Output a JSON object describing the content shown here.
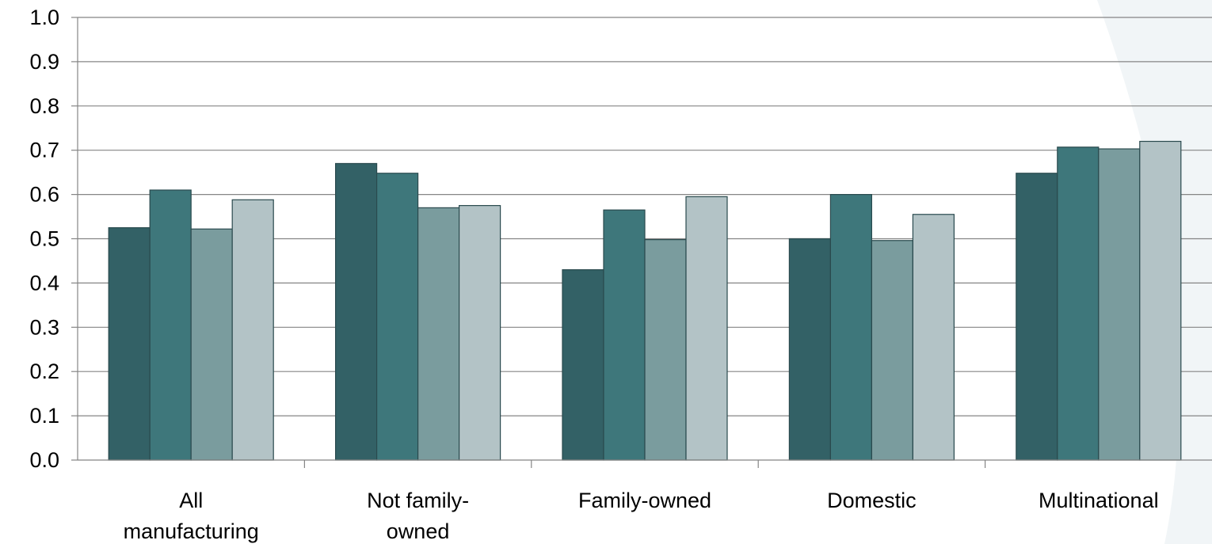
{
  "chart_data": {
    "type": "bar",
    "title": "",
    "xlabel": "",
    "ylabel": "",
    "ylim": [
      0,
      1.0
    ],
    "yticks": [
      "0.0",
      "0.1",
      "0.2",
      "0.3",
      "0.4",
      "0.5",
      "0.6",
      "0.7",
      "0.8",
      "0.9",
      "1.0"
    ],
    "grid": "horizontal",
    "legend": "none",
    "categories": [
      [
        "All",
        "manufacturing"
      ],
      [
        "Not family-",
        "owned"
      ],
      [
        "Family-owned"
      ],
      [
        "Domestic"
      ],
      [
        "Multinational"
      ]
    ],
    "series": [
      {
        "color": "#336166",
        "values": [
          0.525,
          0.67,
          0.43,
          0.5,
          0.648
        ]
      },
      {
        "color": "#3e777b",
        "values": [
          0.61,
          0.648,
          0.565,
          0.6,
          0.707
        ]
      },
      {
        "color": "#7a9c9e",
        "values": [
          0.522,
          0.57,
          0.498,
          0.496,
          0.703
        ]
      },
      {
        "color": "#b3c3c6",
        "values": [
          0.588,
          0.575,
          0.595,
          0.555,
          0.72
        ]
      }
    ],
    "colors": {
      "gridline": "#858585",
      "axis": "#858585",
      "bar_outline": "#2a4a4e",
      "watermark": "#f1f5f7"
    }
  }
}
